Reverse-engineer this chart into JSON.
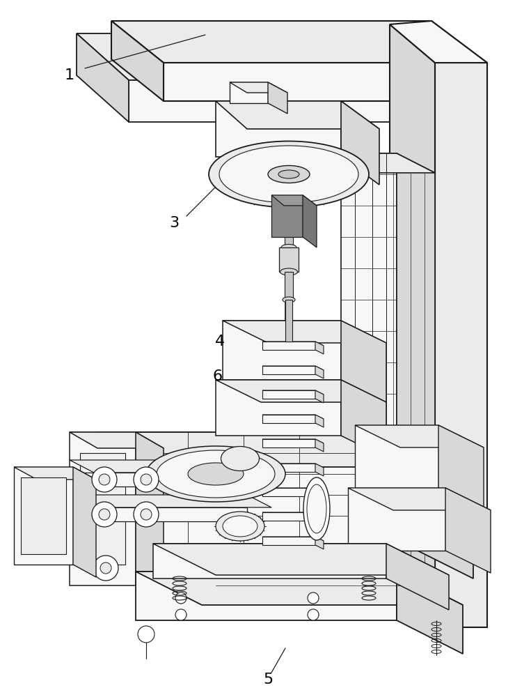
{
  "background_color": "#ffffff",
  "line_color": "#1a1a1a",
  "label_color": "#000000",
  "figsize": [
    7.4,
    10.0
  ],
  "dpi": 100,
  "face_light": "#f7f7f7",
  "face_mid": "#ebebeb",
  "face_dark": "#d8d8d8",
  "face_darker": "#c8c8c8"
}
